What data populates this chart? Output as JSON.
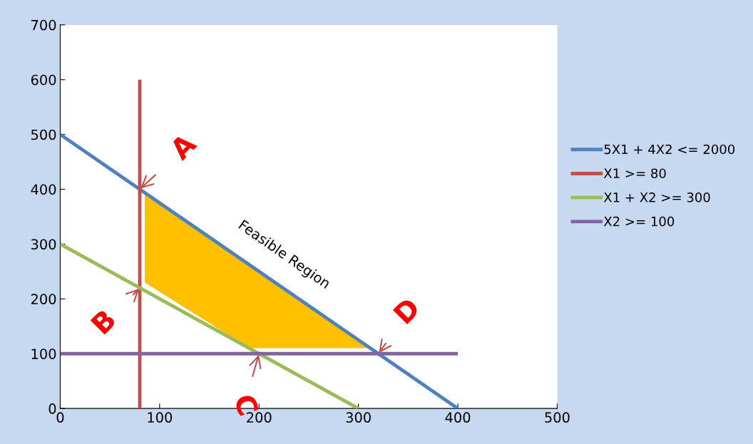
{
  "chart_data": {
    "type": "line",
    "series": [
      {
        "name": "5X1 + 4X2 <= 2000",
        "color": "#4f81bd",
        "x": [
          0,
          400
        ],
        "values": [
          500,
          0
        ]
      },
      {
        "name": "X1 >= 80",
        "color": "#c0504d",
        "x": [
          80,
          80
        ],
        "values": [
          0,
          600
        ]
      },
      {
        "name": "X1 + X2 >= 300",
        "color": "#9bbb59",
        "x": [
          0,
          300
        ],
        "values": [
          300,
          0
        ]
      },
      {
        "name": "X2 >= 100",
        "color": "#8064a2",
        "x": [
          0,
          400
        ],
        "values": [
          100,
          100
        ]
      },
      {
        "type": "area",
        "color": "#ffc000",
        "x": [
          85,
          85,
          190,
          310
        ],
        "values": [
          390,
          230,
          110,
          110
        ]
      }
    ],
    "xlim": [
      0,
      500
    ],
    "ylim": [
      0,
      700
    ],
    "xticks": [
      0,
      100,
      200,
      300,
      400,
      500
    ],
    "yticks": [
      0,
      100,
      200,
      300,
      400,
      500,
      600,
      700
    ],
    "grid": false,
    "legend": "right",
    "marker": "none",
    "line_style": "solid",
    "annotations": [
      "Feasible Region",
      {
        "text": "A",
        "x": 80,
        "y": 400
      },
      {
        "text": "B",
        "x": 80,
        "y": 220
      },
      {
        "text": "C",
        "x": 200,
        "y": 100
      },
      {
        "text": "D",
        "x": 320,
        "y": 100
      }
    ]
  }
}
